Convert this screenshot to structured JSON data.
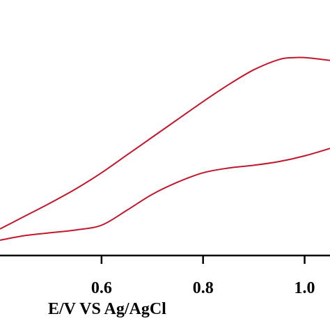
{
  "chart_data": {
    "type": "line",
    "title": "",
    "xlabel": "E/V VS Ag/AgCl",
    "ylabel": "",
    "xlim": [
      0.4,
      1.05
    ],
    "ylim": [
      0,
      1
    ],
    "x_ticks": [
      "0.6",
      "0.8",
      "1.0"
    ],
    "x_tick_values": [
      0.6,
      0.8,
      1.0
    ],
    "grid": false,
    "line_color": "#c0182a",
    "axis_color": "#000000",
    "series": [
      {
        "x": [
          0.4,
          0.45,
          0.5,
          0.55,
          0.6,
          0.65,
          0.7,
          0.75,
          0.8,
          0.85,
          0.9,
          0.95,
          0.98,
          1.0,
          1.02,
          1.05
        ],
        "y": [
          0.06,
          0.13,
          0.2,
          0.275,
          0.36,
          0.455,
          0.55,
          0.645,
          0.74,
          0.83,
          0.91,
          0.965,
          0.975,
          0.975,
          0.97,
          0.96
        ]
      },
      {
        "x": [
          0.4,
          0.45,
          0.5,
          0.55,
          0.6,
          0.65,
          0.7,
          0.75,
          0.8,
          0.85,
          0.9,
          0.95,
          1.0,
          1.05
        ],
        "y": [
          0.0,
          0.025,
          0.04,
          0.055,
          0.08,
          0.16,
          0.245,
          0.31,
          0.36,
          0.385,
          0.4,
          0.42,
          0.45,
          0.49
        ]
      }
    ]
  }
}
